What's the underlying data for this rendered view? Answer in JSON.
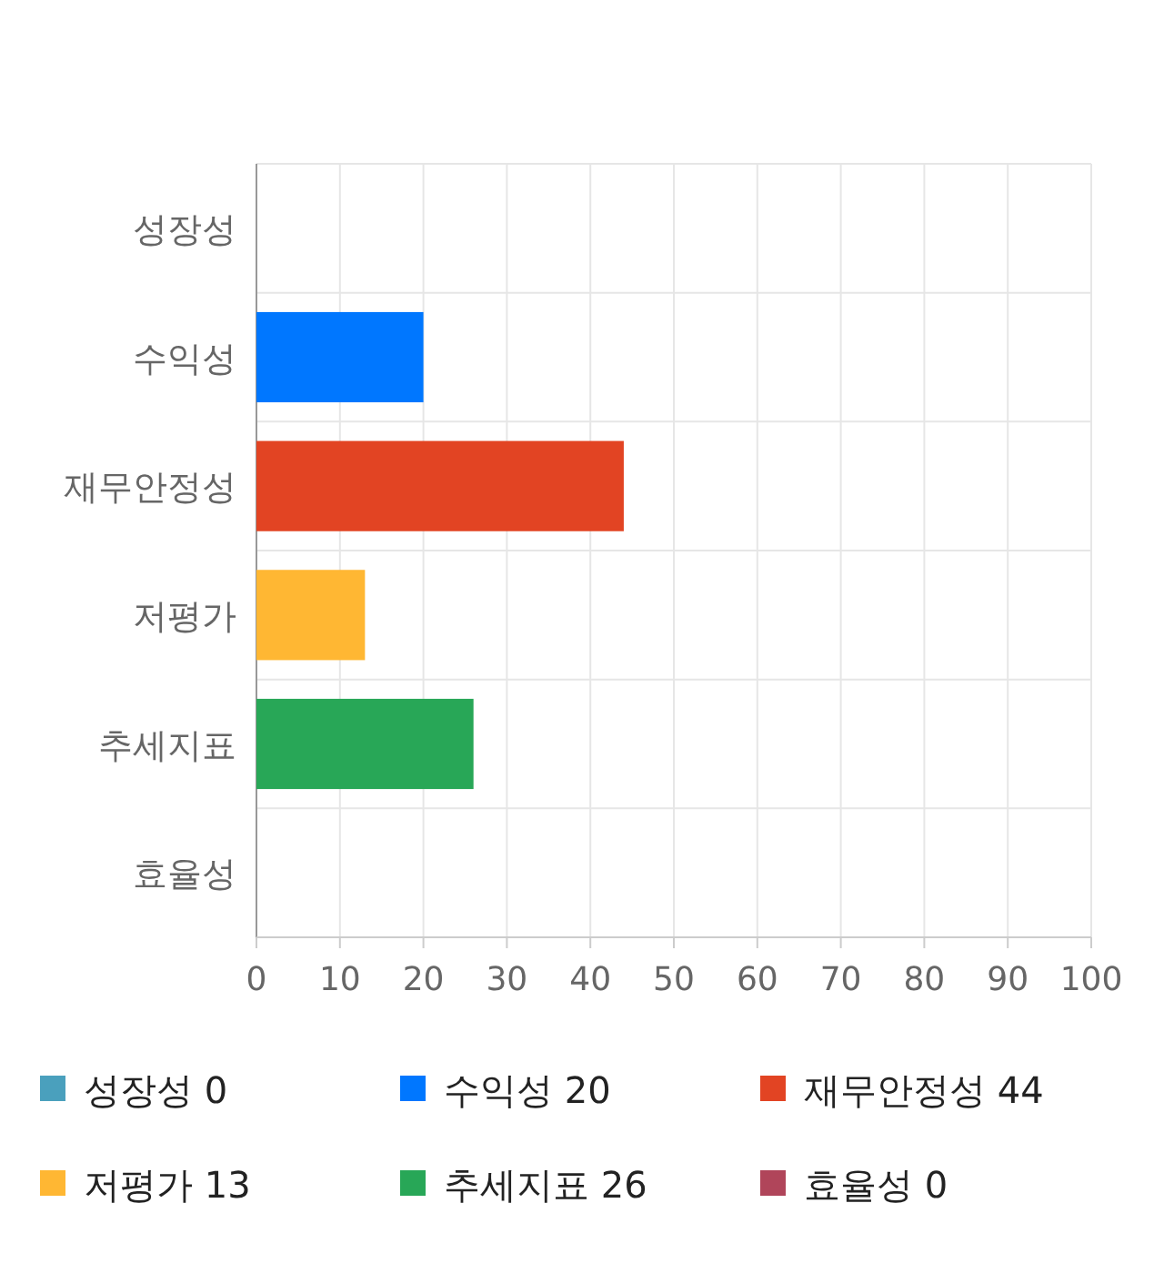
{
  "chart_data": {
    "type": "bar",
    "orientation": "horizontal",
    "categories": [
      "성장성",
      "수익성",
      "재무안정성",
      "저평가",
      "추세지표",
      "효율성"
    ],
    "series": [
      {
        "name": "성장성 0",
        "color": "#4aa0bd",
        "values": [
          0,
          null,
          null,
          null,
          null,
          null
        ]
      },
      {
        "name": "수익성 20",
        "color": "#0077ff",
        "values": [
          null,
          20,
          null,
          null,
          null,
          null
        ]
      },
      {
        "name": "재무안정성 44",
        "color": "#e24423",
        "values": [
          null,
          null,
          44,
          null,
          null,
          null
        ]
      },
      {
        "name": "저평가 13",
        "color": "#ffb733",
        "values": [
          null,
          null,
          null,
          13,
          null,
          null
        ]
      },
      {
        "name": "추세지표 26",
        "color": "#28a757",
        "values": [
          null,
          null,
          null,
          null,
          26,
          null
        ]
      },
      {
        "name": "효율성 0",
        "color": "#b0455a",
        "values": [
          null,
          null,
          null,
          null,
          null,
          0
        ]
      }
    ],
    "xlim": [
      0,
      100
    ],
    "xticks": [
      0,
      10,
      20,
      30,
      40,
      50,
      60,
      70,
      80,
      90,
      100
    ],
    "grid": true,
    "legend": "bottom"
  }
}
